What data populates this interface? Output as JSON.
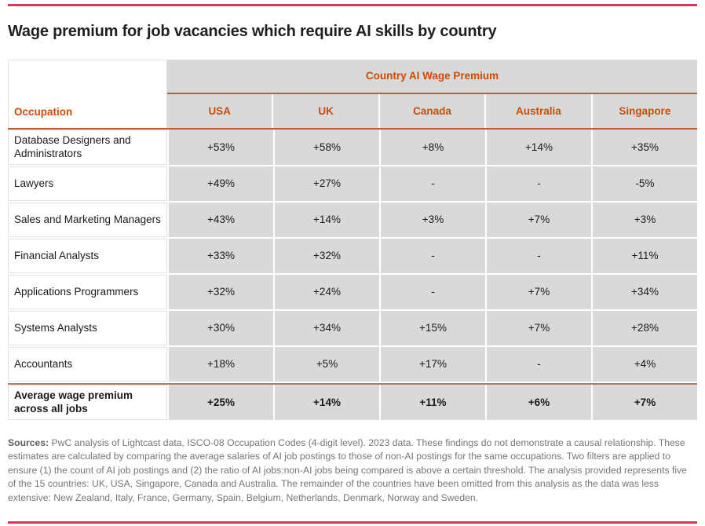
{
  "page": {
    "title": "Wage premium for job vacancies which require AI skills by country"
  },
  "table": {
    "occupation_header": "Occupation",
    "group_header": "Country AI Wage Premium",
    "columns": [
      "USA",
      "UK",
      "Canada",
      "Australia",
      "Singapore"
    ],
    "rows": [
      {
        "occupation": "Database Designers and Administrators",
        "values": [
          "+53%",
          "+58%",
          "+8%",
          "+14%",
          "+35%"
        ]
      },
      {
        "occupation": "Lawyers",
        "values": [
          "+49%",
          "+27%",
          "-",
          "-",
          "-5%"
        ]
      },
      {
        "occupation": "Sales and Marketing Managers",
        "values": [
          "+43%",
          "+14%",
          "+3%",
          "+7%",
          "+3%"
        ]
      },
      {
        "occupation": "Financial Analysts",
        "values": [
          "+33%",
          "+32%",
          "-",
          "-",
          "+11%"
        ]
      },
      {
        "occupation": "Applications Programmers",
        "values": [
          "+32%",
          "+24%",
          "-",
          "+7%",
          "+34%"
        ]
      },
      {
        "occupation": "Systems Analysts",
        "values": [
          "+30%",
          "+34%",
          "+15%",
          "+7%",
          "+28%"
        ]
      },
      {
        "occupation": "Accountants",
        "values": [
          "+18%",
          "+5%",
          "+17%",
          "-",
          "+4%"
        ]
      }
    ],
    "average_row": {
      "occupation": "Average wage premium across all jobs",
      "values": [
        "+25%",
        "+14%",
        "+11%",
        "+6%",
        "+7%"
      ]
    }
  },
  "footnote": {
    "label": "Sources:",
    "text": " PwC analysis of Lightcast data, ISCO-08 Occupation Codes (4-digit level). 2023 data. These findings do not demonstrate a causal relationship. These estimates are calculated by comparing the average salaries of AI job postings to those of non-AI postings for the same occupations. Two filters are applied to ensure (1) the count of AI job postings and (2) the ratio of AI jobs:non-AI jobs being compared is above a certain threshold. The analysis provided represents five of the 15 countries: UK, USA, Singapore, Canada and Australia. The remainder of the countries have been omitted from this analysis as the data was less extensive: New Zealand, Italy, France, Germany, Spain, Belgium, Netherlands, Denmark, Norway and Sweden."
  },
  "colors": {
    "accent_orange": "#d04a02",
    "page_rule_red": "#d93954",
    "table_rule_orange": "#b9602f",
    "cell_gray": "#d9d9d9"
  },
  "chart_data": {
    "type": "table",
    "title": "Wage premium for job vacancies which require AI skills by country",
    "row_header": "Occupation",
    "column_group_label": "Country AI Wage Premium",
    "columns": [
      "USA",
      "UK",
      "Canada",
      "Australia",
      "Singapore"
    ],
    "unit": "percent wage premium",
    "rows": [
      {
        "occupation": "Database Designers and Administrators",
        "values_pct": [
          53,
          58,
          8,
          14,
          35
        ]
      },
      {
        "occupation": "Lawyers",
        "values_pct": [
          49,
          27,
          null,
          null,
          -5
        ]
      },
      {
        "occupation": "Sales and Marketing Managers",
        "values_pct": [
          43,
          14,
          3,
          7,
          3
        ]
      },
      {
        "occupation": "Financial Analysts",
        "values_pct": [
          33,
          32,
          null,
          null,
          11
        ]
      },
      {
        "occupation": "Applications Programmers",
        "values_pct": [
          32,
          24,
          null,
          7,
          34
        ]
      },
      {
        "occupation": "Systems Analysts",
        "values_pct": [
          30,
          34,
          15,
          7,
          28
        ]
      },
      {
        "occupation": "Accountants",
        "values_pct": [
          18,
          5,
          17,
          null,
          4
        ]
      }
    ],
    "summary_row": {
      "occupation": "Average wage premium across all jobs",
      "values_pct": [
        25,
        14,
        11,
        6,
        7
      ]
    },
    "notes": "null = no value shown (dash)"
  }
}
